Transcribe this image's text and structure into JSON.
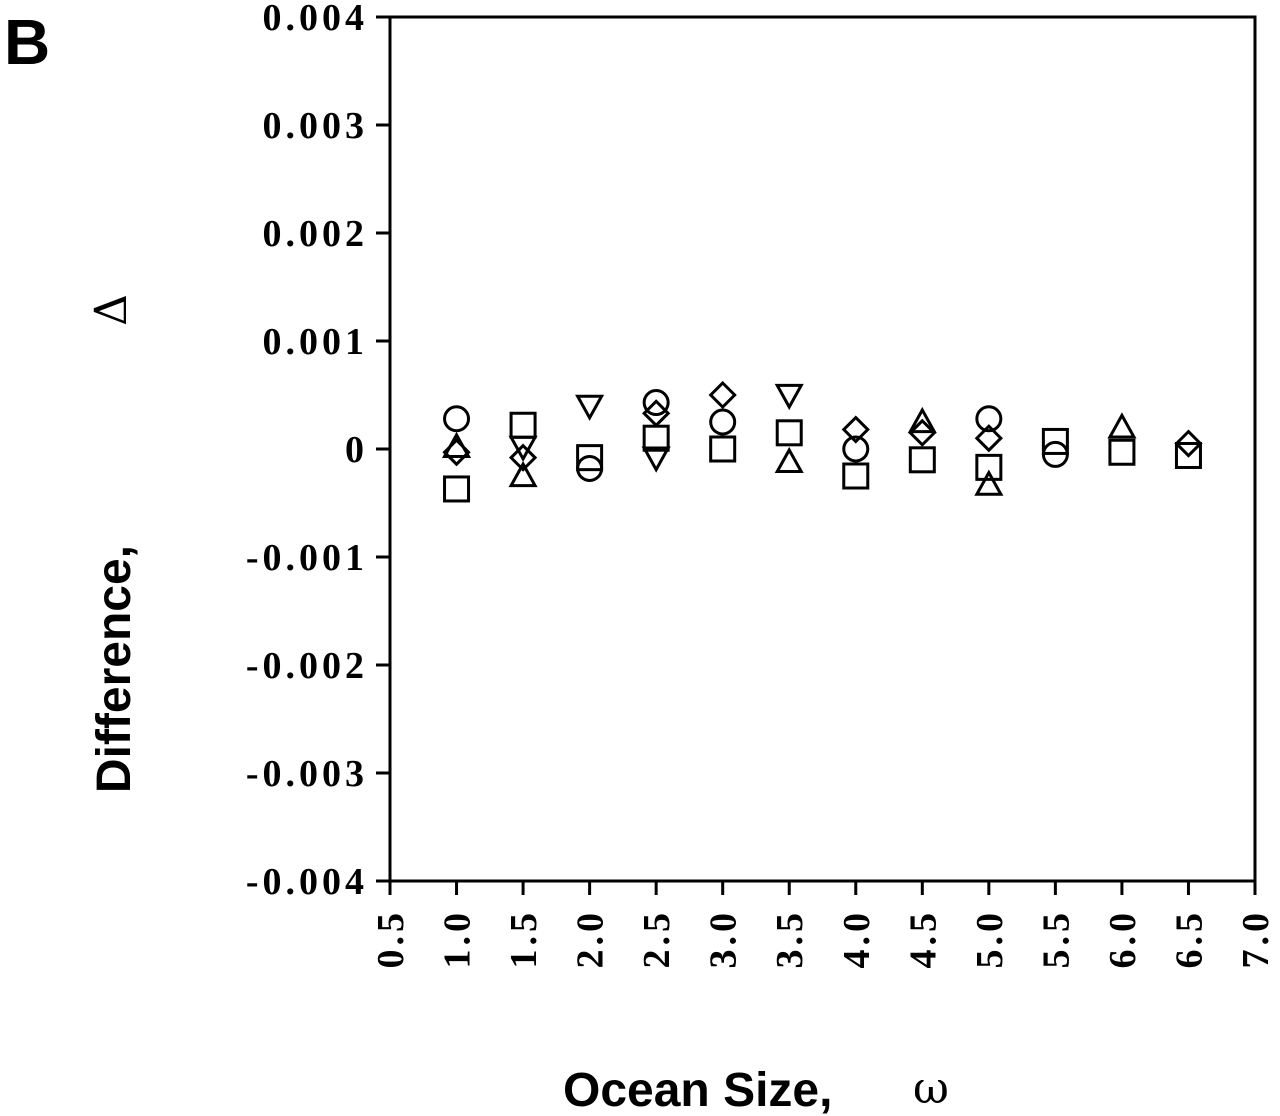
{
  "panel_label": "B",
  "chart_data": {
    "type": "scatter",
    "title": "",
    "xlabel": "Ocean  Size,",
    "xlabel_symbol": "ω",
    "ylabel": "Difference,",
    "ylabel_symbol": "Δ",
    "xlim": [
      0.5,
      7.0
    ],
    "ylim": [
      -0.004,
      0.004
    ],
    "x_tick_labels": [
      "0.5",
      "1.0",
      "1.5",
      "2.0",
      "2.5",
      "3.0",
      "3.5",
      "4.0",
      "4.5",
      "5.0",
      "5.5",
      "6.0",
      "6.5",
      "7.0"
    ],
    "y_tick_labels": [
      "0.004",
      "0.003",
      "0.002",
      "0.001",
      "0",
      "-0.001",
      "-0.002",
      "-0.003",
      "-0.004"
    ],
    "grid": false,
    "series": [
      {
        "marker": "circle",
        "x": [
          1.0,
          2.0,
          2.5,
          3.0,
          4.0,
          5.0,
          5.5
        ],
        "y": [
          0.00028,
          -0.00018,
          0.00043,
          0.00025,
          0.0,
          0.00028,
          -5e-05
        ]
      },
      {
        "marker": "square",
        "x": [
          1.0,
          1.5,
          2.0,
          2.5,
          3.0,
          3.5,
          4.0,
          4.5,
          5.0,
          5.5,
          6.0,
          6.5
        ],
        "y": [
          -0.00037,
          0.00022,
          -8e-05,
          0.0001,
          0.0,
          0.00015,
          -0.00025,
          -0.0001,
          -0.00017,
          7e-05,
          -3e-05,
          -6e-05
        ]
      },
      {
        "marker": "diamond",
        "x": [
          1.0,
          1.5,
          2.5,
          3.0,
          4.0,
          4.5,
          5.0,
          6.5
        ],
        "y": [
          -3e-05,
          -8e-05,
          0.00033,
          0.0005,
          0.00018,
          0.00015,
          0.0001,
          5e-05
        ]
      },
      {
        "marker": "triangle-up",
        "x": [
          1.0,
          1.5,
          3.5,
          4.5,
          5.0,
          6.0
        ],
        "y": [
          2e-05,
          -0.00025,
          -0.00012,
          0.00025,
          -0.00033,
          0.0002
        ]
      },
      {
        "marker": "triangle-down",
        "x": [
          1.5,
          2.0,
          2.5,
          3.5
        ],
        "y": [
          2e-05,
          0.0004,
          -8e-05,
          0.0005
        ]
      }
    ]
  }
}
